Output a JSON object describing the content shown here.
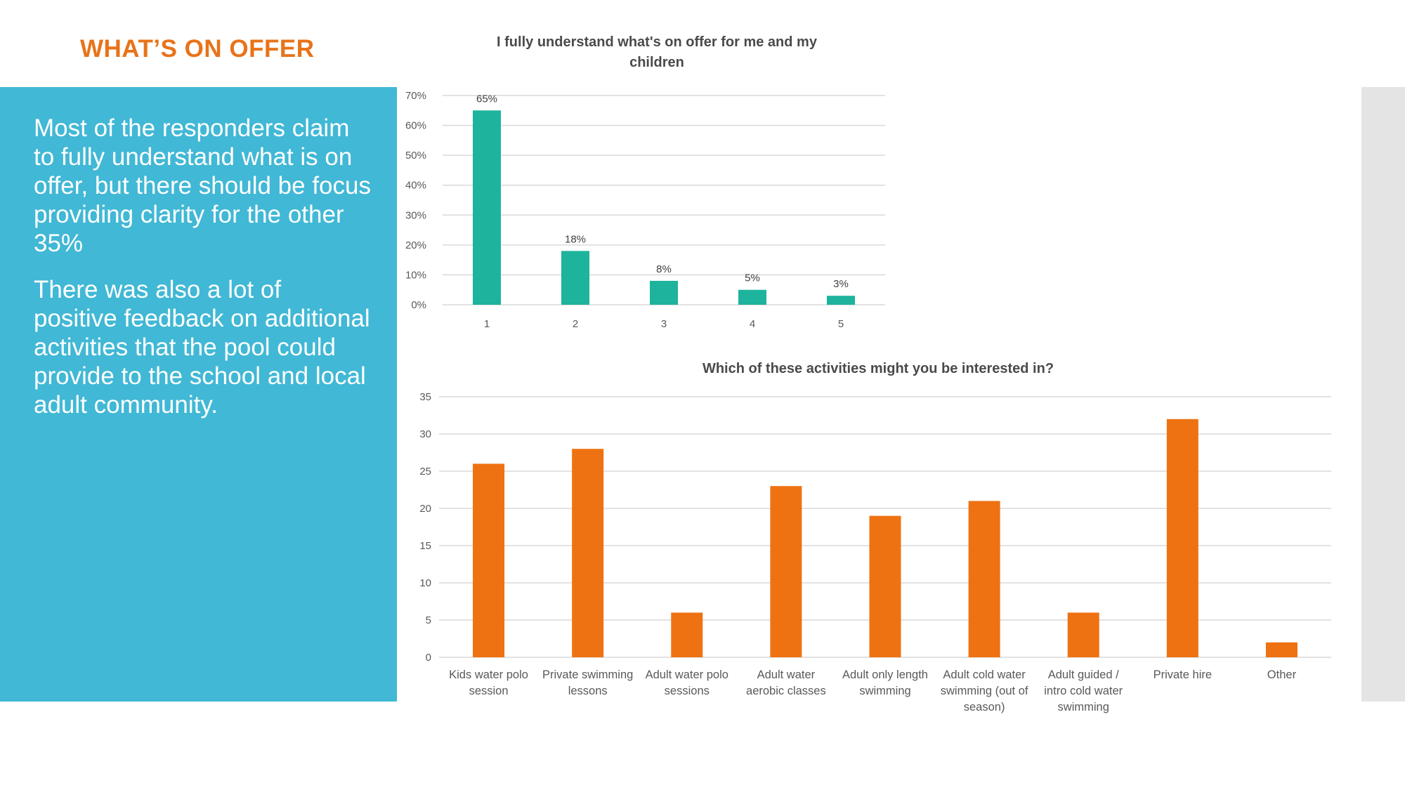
{
  "slide": {
    "title": "WHAT’S ON OFFER",
    "paragraph1": "Most of the responders claim to fully understand what is on offer, but there should be focus providing clarity for the other 35%",
    "paragraph2": "There was also a lot of positive feedback on additional activities that the pool could provide to the school and local adult community."
  },
  "colors": {
    "title": "#e8731a",
    "panel": "#41b8d5",
    "series1": "#1db39c",
    "series2": "#ee7212",
    "grid": "#d9d9d9",
    "text": "#595959"
  },
  "chart_data": [
    {
      "type": "bar",
      "title": "I fully understand what's on offer for me and my children",
      "categories": [
        "1",
        "2",
        "3",
        "4",
        "5"
      ],
      "values": [
        65,
        18,
        8,
        5,
        3
      ],
      "data_labels": [
        "65%",
        "18%",
        "8%",
        "5%",
        "3%"
      ],
      "yticks": [
        "0%",
        "10%",
        "20%",
        "30%",
        "40%",
        "50%",
        "60%",
        "70%"
      ],
      "ylim": [
        0,
        70
      ],
      "xlabel": "",
      "ylabel": "",
      "grid": true,
      "legend": "none"
    },
    {
      "type": "bar",
      "title": "Which of these activities might you be interested in?",
      "categories": [
        [
          "Kids water polo",
          "session"
        ],
        [
          "Private swimming",
          "lessons"
        ],
        [
          "Adult water polo",
          "sessions"
        ],
        [
          "Adult water",
          "aerobic classes"
        ],
        [
          "Adult only length",
          "swimming"
        ],
        [
          "Adult cold water",
          "swimming (out of",
          "season)"
        ],
        [
          "Adult guided /",
          "intro cold water",
          "swimming"
        ],
        [
          "Private hire"
        ],
        [
          "Other"
        ]
      ],
      "values": [
        26,
        28,
        6,
        23,
        19,
        21,
        6,
        32,
        2
      ],
      "yticks": [
        "0",
        "5",
        "10",
        "15",
        "20",
        "25",
        "30",
        "35"
      ],
      "ylim": [
        0,
        35
      ],
      "xlabel": "",
      "ylabel": "",
      "grid": true,
      "legend": "none"
    }
  ]
}
